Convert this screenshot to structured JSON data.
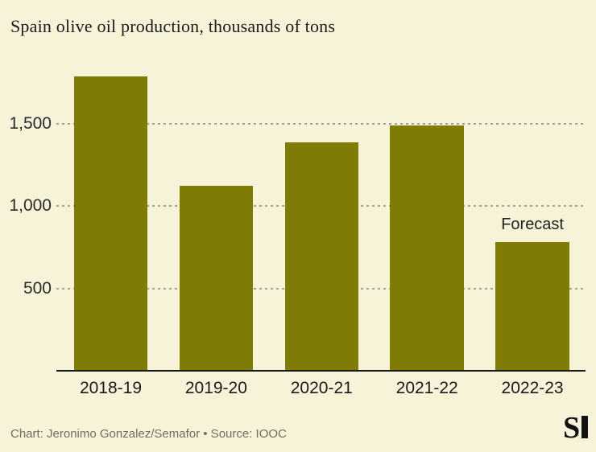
{
  "title": "Spain olive oil production, thousands of tons",
  "footer": {
    "credit": "Chart: Jeronimo Gonzalez/Semafor • Source: IOOC",
    "logo_icon": "semafor-s-logo",
    "logo_glyph": "S"
  },
  "colors": {
    "background": "#F7F3D8",
    "bar": "#7E7C04",
    "text_dark": "#1A1A1A",
    "grid": "#A3A394",
    "footer_text": "#6F6F64",
    "logo_black": "#121212"
  },
  "chart_data": {
    "type": "bar",
    "title": "Spain olive oil production, thousands of tons",
    "categories": [
      "2018-19",
      "2019-20",
      "2020-21",
      "2021-22",
      "2022-23"
    ],
    "values": [
      1790,
      1125,
      1390,
      1490,
      780
    ],
    "xlabel": "",
    "ylabel": "thousands of tons",
    "ylim": [
      0,
      1850
    ],
    "yticks": [
      500,
      1000,
      1500
    ],
    "ytick_labels": [
      "500",
      "1,000",
      "1,500"
    ],
    "grid": "horizontal-dashed",
    "legend": "none",
    "annotations": [
      {
        "text": "Forecast",
        "target_category": "2022-23",
        "position": "above-bar"
      }
    ]
  }
}
